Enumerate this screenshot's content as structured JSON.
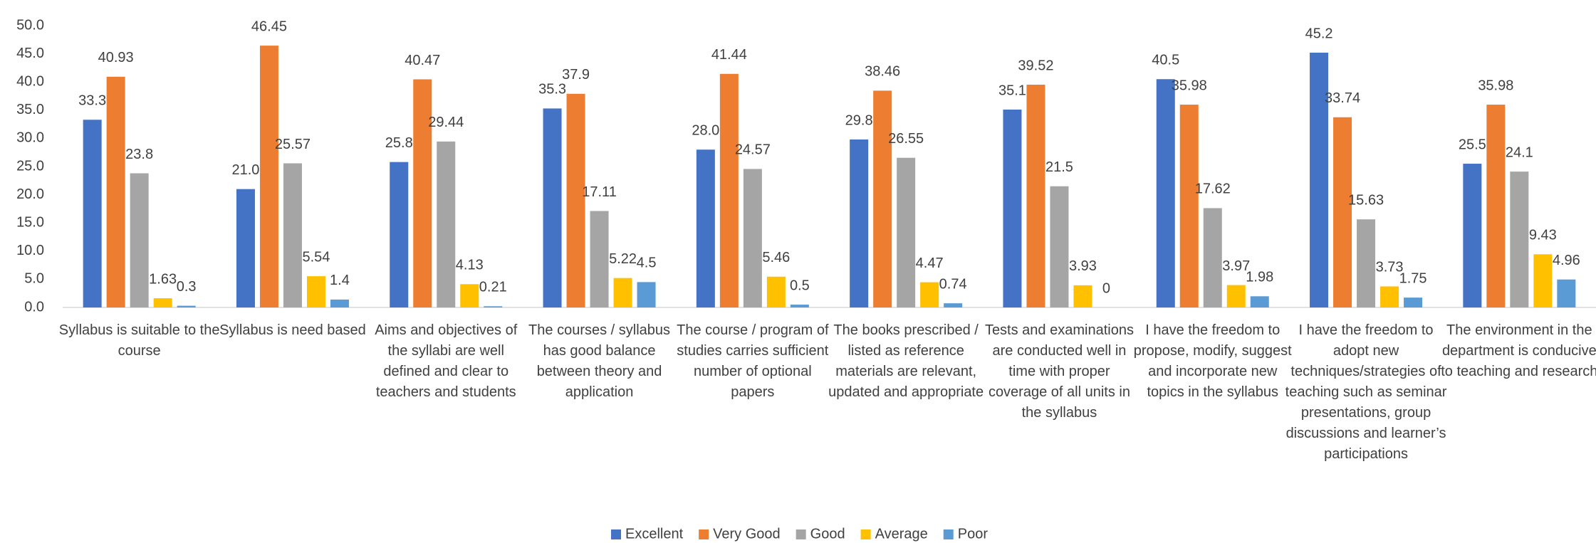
{
  "chart_data": {
    "type": "bar",
    "categories": [
      "Syllabus is suitable to the course",
      "Syllabus is need based",
      "Aims and objectives of the syllabi are well defined and clear to teachers and students",
      "The courses / syllabus has good balance between theory and application",
      "The course / program of studies carries sufficient number of optional papers",
      "The books prescribed / listed as reference materials are relevant, updated and appropriate",
      "Tests and examinations are conducted well in time with proper coverage of all units in the syllabus",
      "I have the freedom to propose, modify, suggest and incorporate new topics in the syllabus",
      "I have the freedom to adopt new techniques/strategies of teaching such as seminar presentations, group discussions and learner’s participations",
      "The environment in the department is conducive to teaching and research"
    ],
    "series": [
      {
        "name": "Excellent",
        "color": "#4472c4",
        "values": [
          33.3,
          21,
          25.8,
          35.3,
          28,
          29.8,
          35.1,
          40.5,
          45.2,
          25.5
        ],
        "value_labels": [
          "33.3",
          "21.0",
          "25.8",
          "35.3",
          "28.0",
          "29.8",
          "35.1",
          "40.5",
          "45.2",
          "25.5"
        ]
      },
      {
        "name": "Very Good",
        "color": "#ed7d31",
        "values": [
          40.93,
          46.45,
          40.47,
          37.9,
          41.44,
          38.46,
          39.52,
          35.98,
          33.74,
          35.98
        ]
      },
      {
        "name": "Good",
        "color": "#a5a5a5",
        "values": [
          23.8,
          25.57,
          29.44,
          17.11,
          24.57,
          26.55,
          21.5,
          17.62,
          15.63,
          24.1
        ]
      },
      {
        "name": "Average",
        "color": "#ffc000",
        "values": [
          1.63,
          5.54,
          4.13,
          5.22,
          5.46,
          4.47,
          3.93,
          3.97,
          3.73,
          9.43
        ]
      },
      {
        "name": "Poor",
        "color": "#5b9bd5",
        "values": [
          0.3,
          1.4,
          0.21,
          4.5,
          0.5,
          0.74,
          0,
          1.98,
          1.75,
          4.96
        ]
      }
    ],
    "ylim": [
      0,
      50
    ],
    "yticks": [
      {
        "value": 0,
        "label": "0.0"
      },
      {
        "value": 5,
        "label": "5.0"
      },
      {
        "value": 10,
        "label": "10.0"
      },
      {
        "value": 15,
        "label": "15.0"
      },
      {
        "value": 20,
        "label": "20.0"
      },
      {
        "value": 25,
        "label": "25.0"
      },
      {
        "value": 30,
        "label": "30.0"
      },
      {
        "value": 35,
        "label": "35.0"
      },
      {
        "value": 40,
        "label": "40.0"
      },
      {
        "value": 45,
        "label": "45.0"
      },
      {
        "value": 50,
        "label": "50.0"
      }
    ],
    "grid": false,
    "legend": "bottom"
  }
}
